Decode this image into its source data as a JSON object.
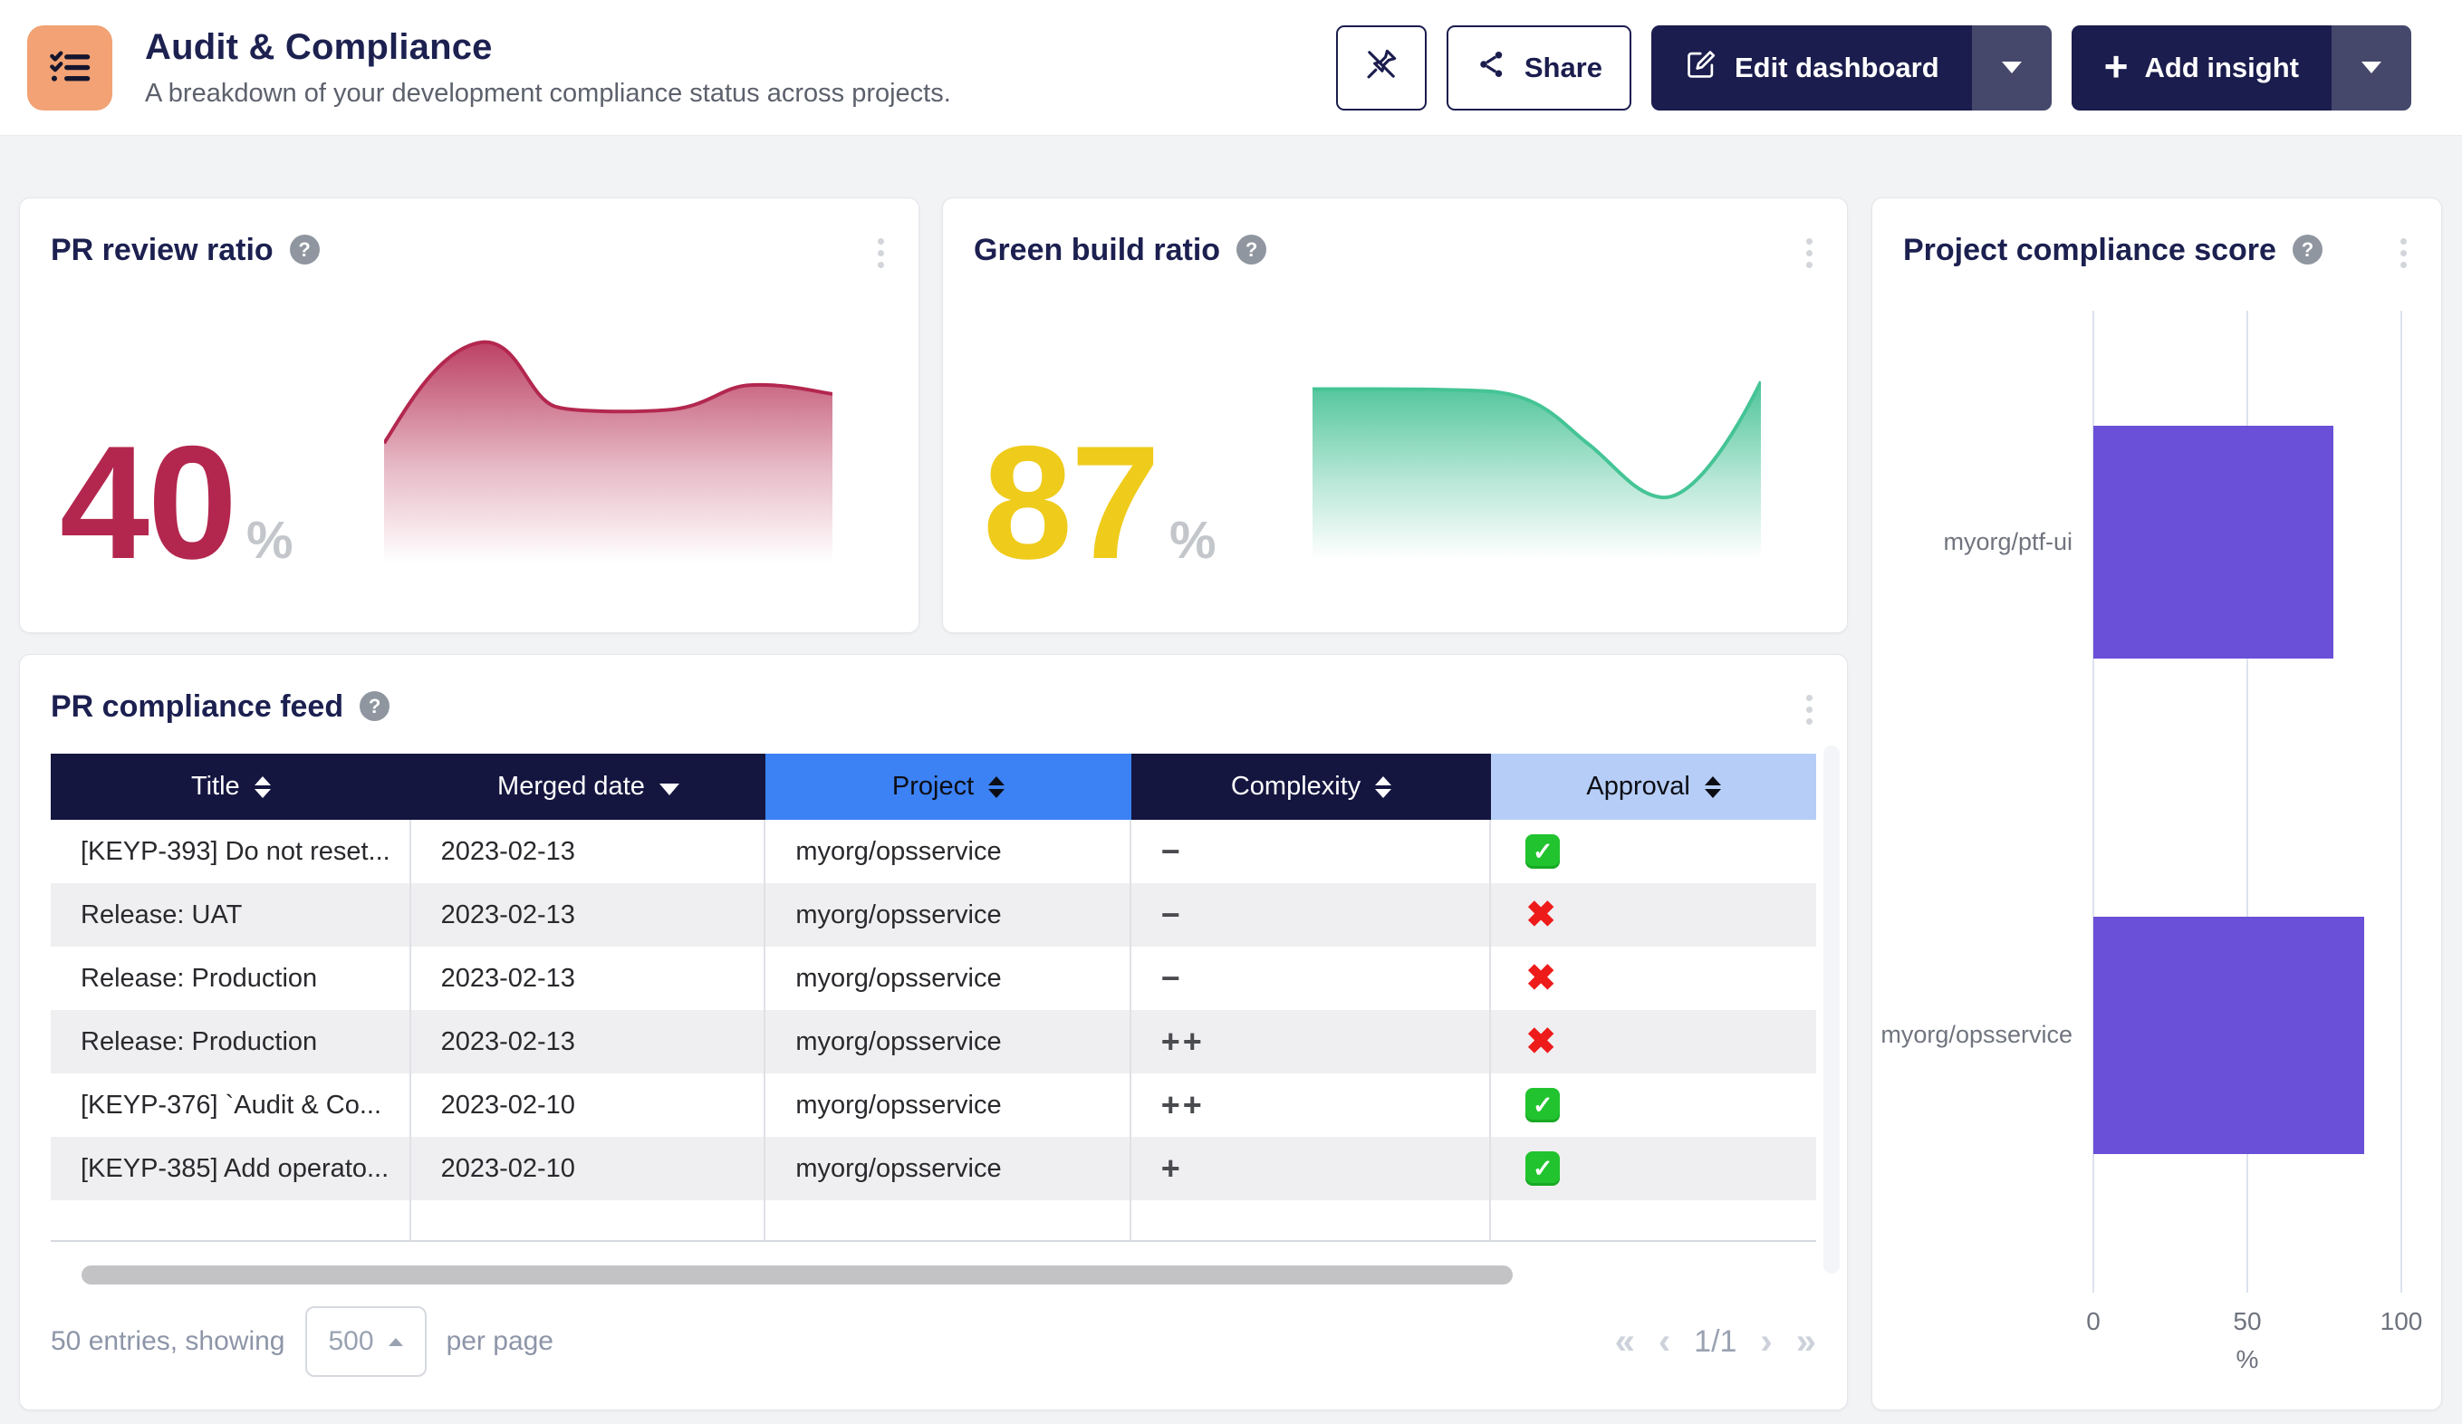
{
  "header": {
    "title": "Audit & Compliance",
    "subtitle": "A breakdown of your development compliance status across projects.",
    "share_label": "Share",
    "edit_label": "Edit dashboard",
    "add_label": "Add insight"
  },
  "metric_cards": [
    {
      "title": "PR review ratio",
      "value": "40",
      "unit": "%",
      "accent": "#b3274e",
      "trend": [
        55,
        100,
        71,
        71,
        81,
        77
      ]
    },
    {
      "title": "Green build ratio",
      "value": "87",
      "unit": "%",
      "accent": "#efcb1b",
      "trend": [
        92,
        92,
        88,
        62,
        48,
        52,
        95
      ]
    }
  ],
  "feed": {
    "title": "PR compliance feed",
    "columns": [
      {
        "label": "Title"
      },
      {
        "label": "Merged date"
      },
      {
        "label": "Project"
      },
      {
        "label": "Complexity"
      },
      {
        "label": "Approval"
      }
    ],
    "rows": [
      {
        "title": "[KEYP-393] Do not reset...",
        "date": "2023-02-13",
        "project": "myorg/opsservice",
        "complexity": "−",
        "approval": "approved"
      },
      {
        "title": "Release: UAT",
        "date": "2023-02-13",
        "project": "myorg/opsservice",
        "complexity": "−",
        "approval": "rejected"
      },
      {
        "title": "Release: Production",
        "date": "2023-02-13",
        "project": "myorg/opsservice",
        "complexity": "−",
        "approval": "rejected"
      },
      {
        "title": "Release: Production",
        "date": "2023-02-13",
        "project": "myorg/opsservice",
        "complexity": "++",
        "approval": "rejected"
      },
      {
        "title": "[KEYP-376] `Audit & Co...",
        "date": "2023-02-10",
        "project": "myorg/opsservice",
        "complexity": "++",
        "approval": "approved"
      },
      {
        "title": "[KEYP-385] Add operato...",
        "date": "2023-02-10",
        "project": "myorg/opsservice",
        "complexity": "+",
        "approval": "approved"
      }
    ],
    "footer": {
      "entries_text": "50 entries, showing",
      "page_size": "500",
      "per_page_text": "per page",
      "page_indicator": "1/1"
    }
  },
  "score_card": {
    "title": "Project compliance score"
  },
  "chart_data": {
    "type": "bar",
    "orientation": "horizontal",
    "title": "Project compliance score",
    "categories": [
      "myorg/ptf-ui",
      "myorg/opsservice"
    ],
    "values": [
      78,
      88
    ],
    "xlabel": "%",
    "xticks": [
      "0",
      "50",
      "100"
    ],
    "xlim": [
      0,
      100
    ],
    "bar_color": "#6a4fd8",
    "grid": true,
    "legend": false
  }
}
